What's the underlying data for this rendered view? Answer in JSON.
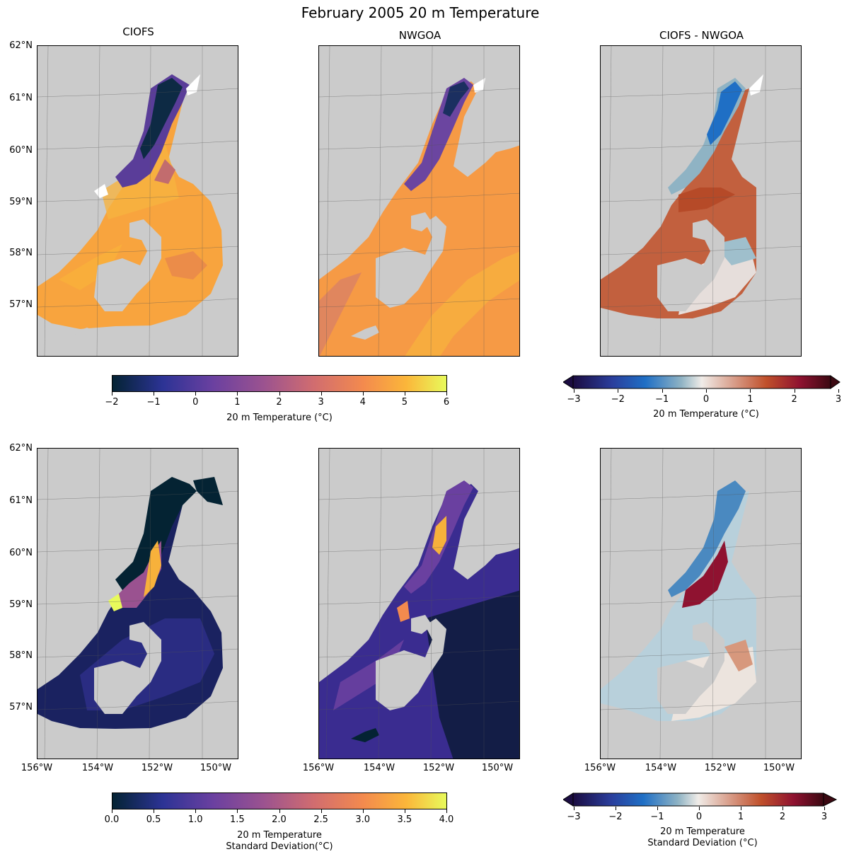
{
  "suptitle": "February 2005 20 m Temperature",
  "panel_titles": {
    "ciofs": "CIOFS",
    "nwgoa": "NWGOA",
    "diff": "CIOFS - NWGOA"
  },
  "lat_labels": [
    "62°N",
    "61°N",
    "60°N",
    "59°N",
    "58°N",
    "57°N"
  ],
  "lon_labels": [
    "156°W",
    "154°W",
    "152°W",
    "150°W"
  ],
  "colorbars": {
    "temp": {
      "label": "20 m Temperature (°C)",
      "ticks": [
        "−2",
        "−1",
        "0",
        "1",
        "2",
        "3",
        "4",
        "5",
        "6"
      ],
      "range": [
        -2,
        6
      ]
    },
    "temp_diff": {
      "label": "20 m Temperature (°C)",
      "ticks": [
        "−3",
        "−2",
        "−1",
        "0",
        "1",
        "2",
        "3"
      ],
      "range": [
        -3,
        3
      ],
      "extend": "both"
    },
    "std": {
      "label_line1": "20 m Temperature",
      "label_line2": "Standard Deviation(°C)",
      "ticks": [
        "0.0",
        "0.5",
        "1.0",
        "1.5",
        "2.0",
        "2.5",
        "3.0",
        "3.5",
        "4.0"
      ],
      "range": [
        0,
        4
      ]
    },
    "std_diff": {
      "label_line1": "20 m Temperature",
      "label_line2": "Standard Deviation (°C)",
      "ticks": [
        "−3",
        "−2",
        "−1",
        "0",
        "1",
        "2",
        "3"
      ],
      "range": [
        -3,
        3
      ],
      "extend": "both"
    }
  },
  "colors": {
    "land": "#cbcbcb",
    "thermal_low": "#042333",
    "thermal_mid": "#b15f82",
    "thermal_high": "#e8fa5b",
    "diff_low": "#1b0c41",
    "diff_mid": "#f0ece8",
    "diff_high": "#3c0912"
  }
}
